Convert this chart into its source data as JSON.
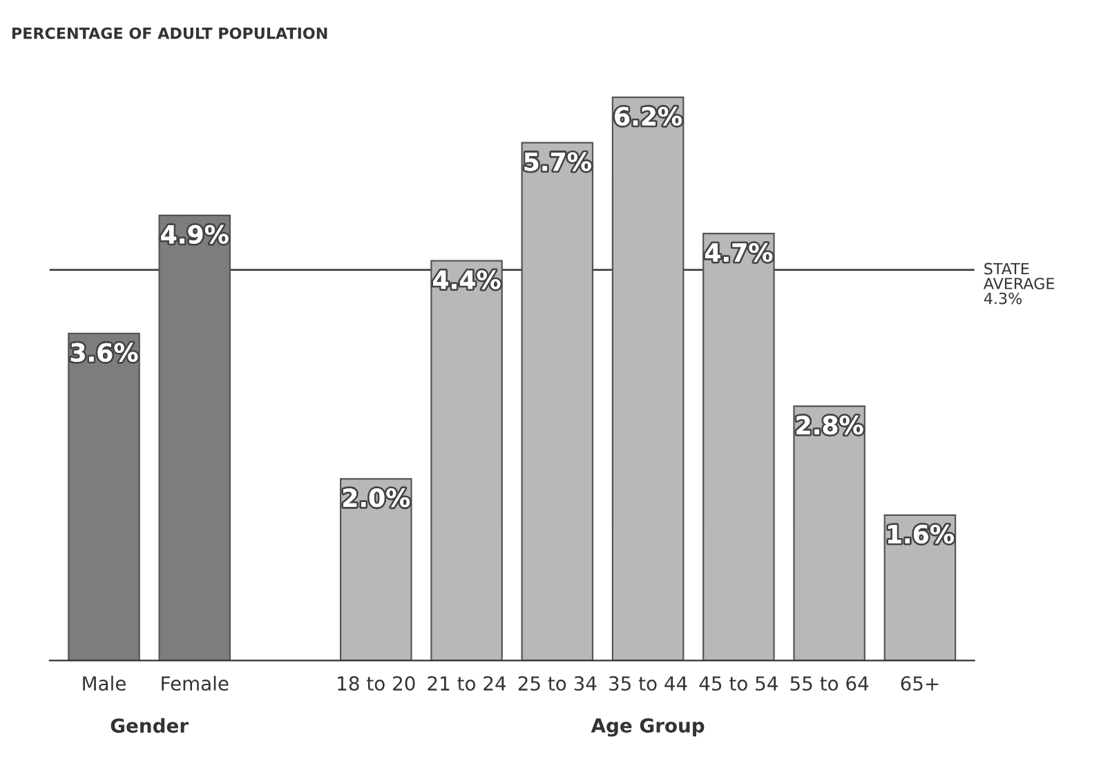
{
  "chart_data": {
    "type": "bar",
    "title": "PERCENTAGE OF ADULT POPULATION",
    "categories": [
      "Male",
      "Female",
      null,
      "18 to 20",
      "21 to 24",
      "25 to 34",
      "35 to 44",
      "45 to 54",
      "55 to 64",
      "65+"
    ],
    "values": [
      3.6,
      4.9,
      null,
      2.0,
      4.4,
      5.7,
      6.2,
      4.7,
      2.8,
      1.6
    ],
    "value_labels": [
      "3.6%",
      "4.9%",
      null,
      "2.0%",
      "4.4%",
      "5.7%",
      "6.2%",
      "4.7%",
      "2.8%",
      "1.6%"
    ],
    "colors": [
      "#7d7d7d",
      "#7d7d7d",
      null,
      "#b8b8b8",
      "#b8b8b8",
      "#b8b8b8",
      "#b8b8b8",
      "#b8b8b8",
      "#b8b8b8",
      "#b8b8b8"
    ],
    "tick_labels": "x",
    "grid": false,
    "legend": false,
    "ref_lines": [
      {
        "axis": "y",
        "value": 4.3,
        "label": "STATE\nAVERAGE\n4.3%",
        "color": "#333333",
        "line_style": "solid"
      }
    ],
    "annotations": [
      "Gender",
      "Age Group"
    ]
  }
}
